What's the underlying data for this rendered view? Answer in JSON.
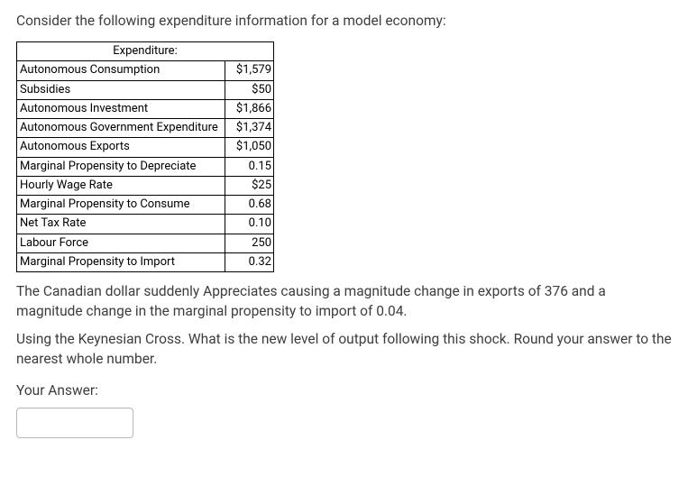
{
  "intro_text": "Consider the following expenditure information for a model economy:",
  "table": {
    "header": "Expenditure:",
    "rows": [
      {
        "label": "Autonomous Consumption",
        "value": "$1,579"
      },
      {
        "label": "Subsidies",
        "value": "$50"
      },
      {
        "label": "Autonomous Investment",
        "value": "$1,866"
      },
      {
        "label": "Autonomous Government Expenditure",
        "value": "$1,374"
      },
      {
        "label": "Autonomous Exports",
        "value": "$1,050"
      },
      {
        "label": "Marginal Propensity to Depreciate",
        "value": "0.15"
      },
      {
        "label": "Hourly Wage Rate",
        "value": "$25"
      },
      {
        "label": "Marginal Propensity to Consume",
        "value": "0.68"
      },
      {
        "label": "Net Tax Rate",
        "value": "0.10"
      },
      {
        "label": "Labour Force",
        "value": "250"
      },
      {
        "label": "Marginal Propensity to Import",
        "value": "0.32"
      }
    ]
  },
  "paragraph1": "The Canadian dollar suddenly Appreciates causing a magnitude change in exports of 376 and a magnitude change in the marginal propensity to import of 0.04.",
  "paragraph2": "Using the Keynesian Cross. What is the new level of output following this shock. Round your answer to the nearest whole number.",
  "your_answer_label": "Your Answer:",
  "answer_value": "",
  "answer_placeholder": ""
}
